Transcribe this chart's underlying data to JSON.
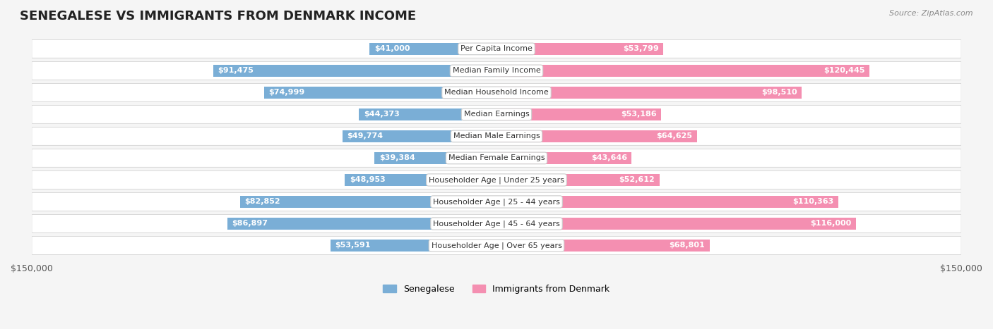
{
  "title": "SENEGALESE VS IMMIGRANTS FROM DENMARK INCOME",
  "source": "Source: ZipAtlas.com",
  "categories": [
    "Per Capita Income",
    "Median Family Income",
    "Median Household Income",
    "Median Earnings",
    "Median Male Earnings",
    "Median Female Earnings",
    "Householder Age | Under 25 years",
    "Householder Age | 25 - 44 years",
    "Householder Age | 45 - 64 years",
    "Householder Age | Over 65 years"
  ],
  "senegalese": [
    41000,
    91475,
    74999,
    44373,
    49774,
    39384,
    48953,
    82852,
    86897,
    53591
  ],
  "denmark": [
    53799,
    120445,
    98510,
    53186,
    64625,
    43646,
    52612,
    110363,
    116000,
    68801
  ],
  "senegalese_labels": [
    "$41,000",
    "$91,475",
    "$74,999",
    "$44,373",
    "$49,774",
    "$39,384",
    "$48,953",
    "$82,852",
    "$86,897",
    "$53,591"
  ],
  "denmark_labels": [
    "$53,799",
    "$120,445",
    "$98,510",
    "$53,186",
    "$64,625",
    "$43,646",
    "$52,612",
    "$110,363",
    "$116,000",
    "$68,801"
  ],
  "max_val": 150000,
  "senegalese_color": "#7aaed6",
  "denmark_color": "#f48fb1",
  "senegalese_dark": "#4e86b8",
  "denmark_dark": "#e91e8c",
  "bg_color": "#f5f5f5",
  "row_bg": "#ffffff",
  "bar_height": 0.55,
  "legend_senegalese": "Senegalese",
  "legend_denmark": "Immigrants from Denmark"
}
